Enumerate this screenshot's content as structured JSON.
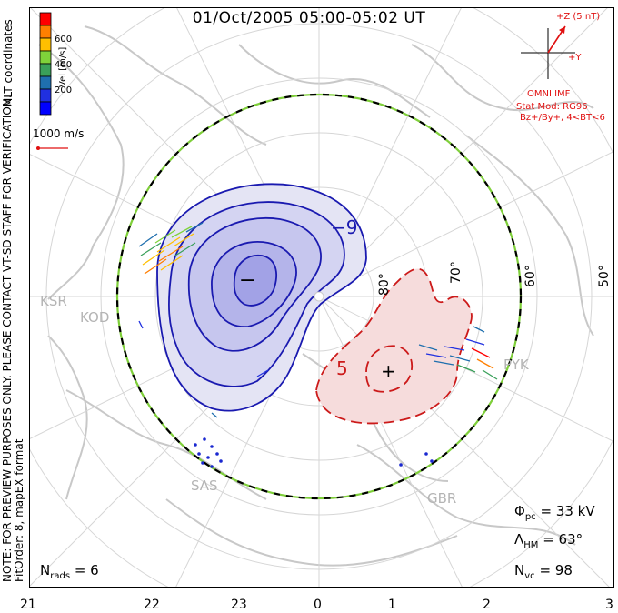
{
  "header": {
    "title": "01/Oct/2005 05:00-05:02 UT"
  },
  "notes": {
    "preview_note": "NOTE: FOR PREVIEW PURPOSES ONLY. PLEASE CONTACT VT-SD STAFF FOR VERIFICATION.",
    "fit_order": "FitOrder: 8, mapEX format",
    "coords": "MLT coordinates"
  },
  "colorbar": {
    "title": "Vel [m/s]",
    "ticks": [
      "600",
      "400",
      "200"
    ],
    "colors": [
      "#ff0000",
      "#ff7f00",
      "#ffbf00",
      "#7fd23a",
      "#3aa05a",
      "#1f6fae",
      "#2030e0",
      "#0000ff"
    ]
  },
  "scale_vector": {
    "label": "1000 m/s",
    "color": "#e01010"
  },
  "imf": {
    "bz_label": "+Z (5 nT)",
    "by_label": "+Y",
    "source": "OMNI IMF",
    "model": "Stat Mod: RG96",
    "condition": "Bz+/By+, 4<BT<6",
    "color": "#e01010"
  },
  "stats": {
    "phi_symbol": "Φ",
    "phi_sub": "pc",
    "phi_value": "= 33 kV",
    "lambda_symbol": "Λ",
    "lambda_sub": "HM",
    "lambda_value": "= 63°",
    "nvc_symbol": "N",
    "nvc_sub": "vc",
    "nvc_value": "= 98",
    "nrads_symbol": "N",
    "nrads_sub": "rads",
    "nrads_value": "= 6"
  },
  "mlt_axis": [
    "21",
    "22",
    "23",
    "0",
    "1",
    "2",
    "3"
  ],
  "latitude_labels": [
    "80°",
    "70°",
    "60°",
    "50°"
  ],
  "stations": [
    "KSR",
    "KOD",
    "SAS",
    "PYK",
    "GBR"
  ],
  "contours": {
    "negative_cell_label": "−9",
    "negative_center_sign": "−",
    "positive_cell_label": "5",
    "positive_center_sign": "+",
    "negative_color": "#1a1ab0",
    "positive_color": "#cc1a1a"
  }
}
